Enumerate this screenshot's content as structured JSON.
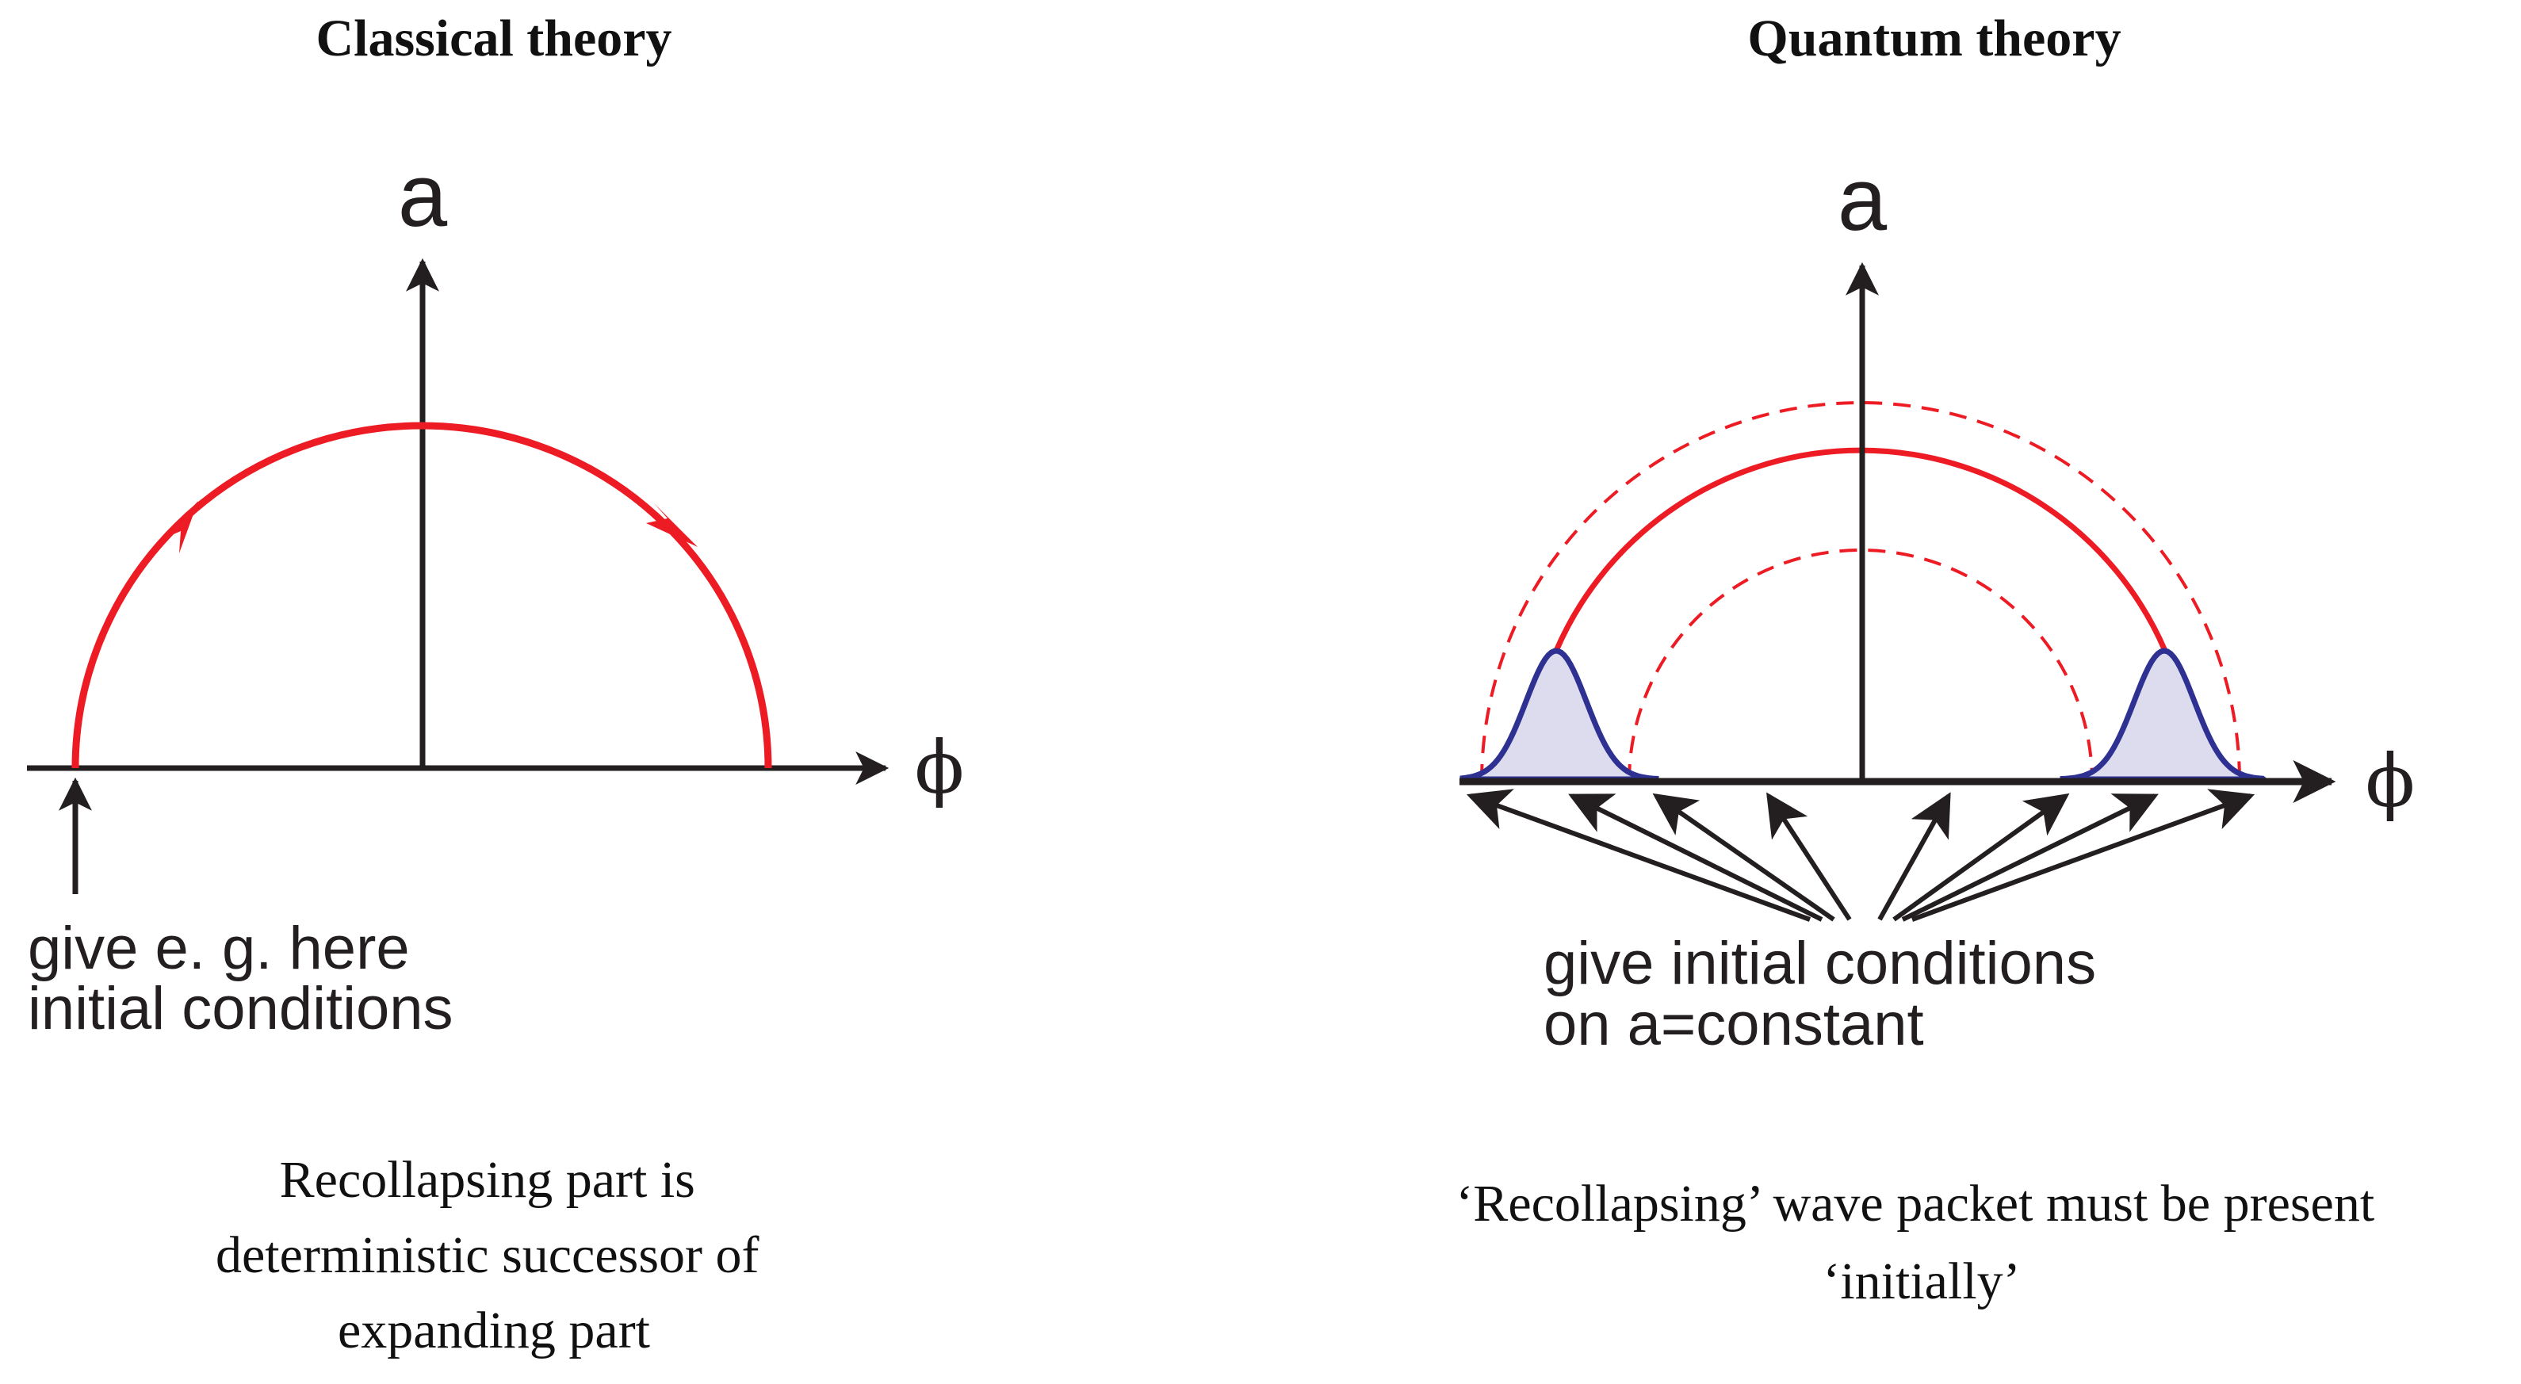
{
  "colors": {
    "trajectory": "#ed1c24",
    "axis": "#231f20",
    "wave_packet_stroke": "#2e3192",
    "wave_packet_fill": "#dcdcee"
  },
  "classical": {
    "title": "Classical theory",
    "y_axis_label": "a",
    "x_axis_label": "ϕ",
    "annotation": [
      "give e. g. here",
      "initial conditions"
    ],
    "caption": [
      "Recollapsing part is",
      "deterministic successor of",
      "expanding part"
    ]
  },
  "quantum": {
    "title": "Quantum theory",
    "y_axis_label": "a",
    "x_axis_label": "ϕ",
    "annotation": [
      "give initial conditions",
      "on a=constant"
    ],
    "caption": [
      "‘Recollapsing’ wave packet must be present",
      "‘initially’"
    ]
  }
}
